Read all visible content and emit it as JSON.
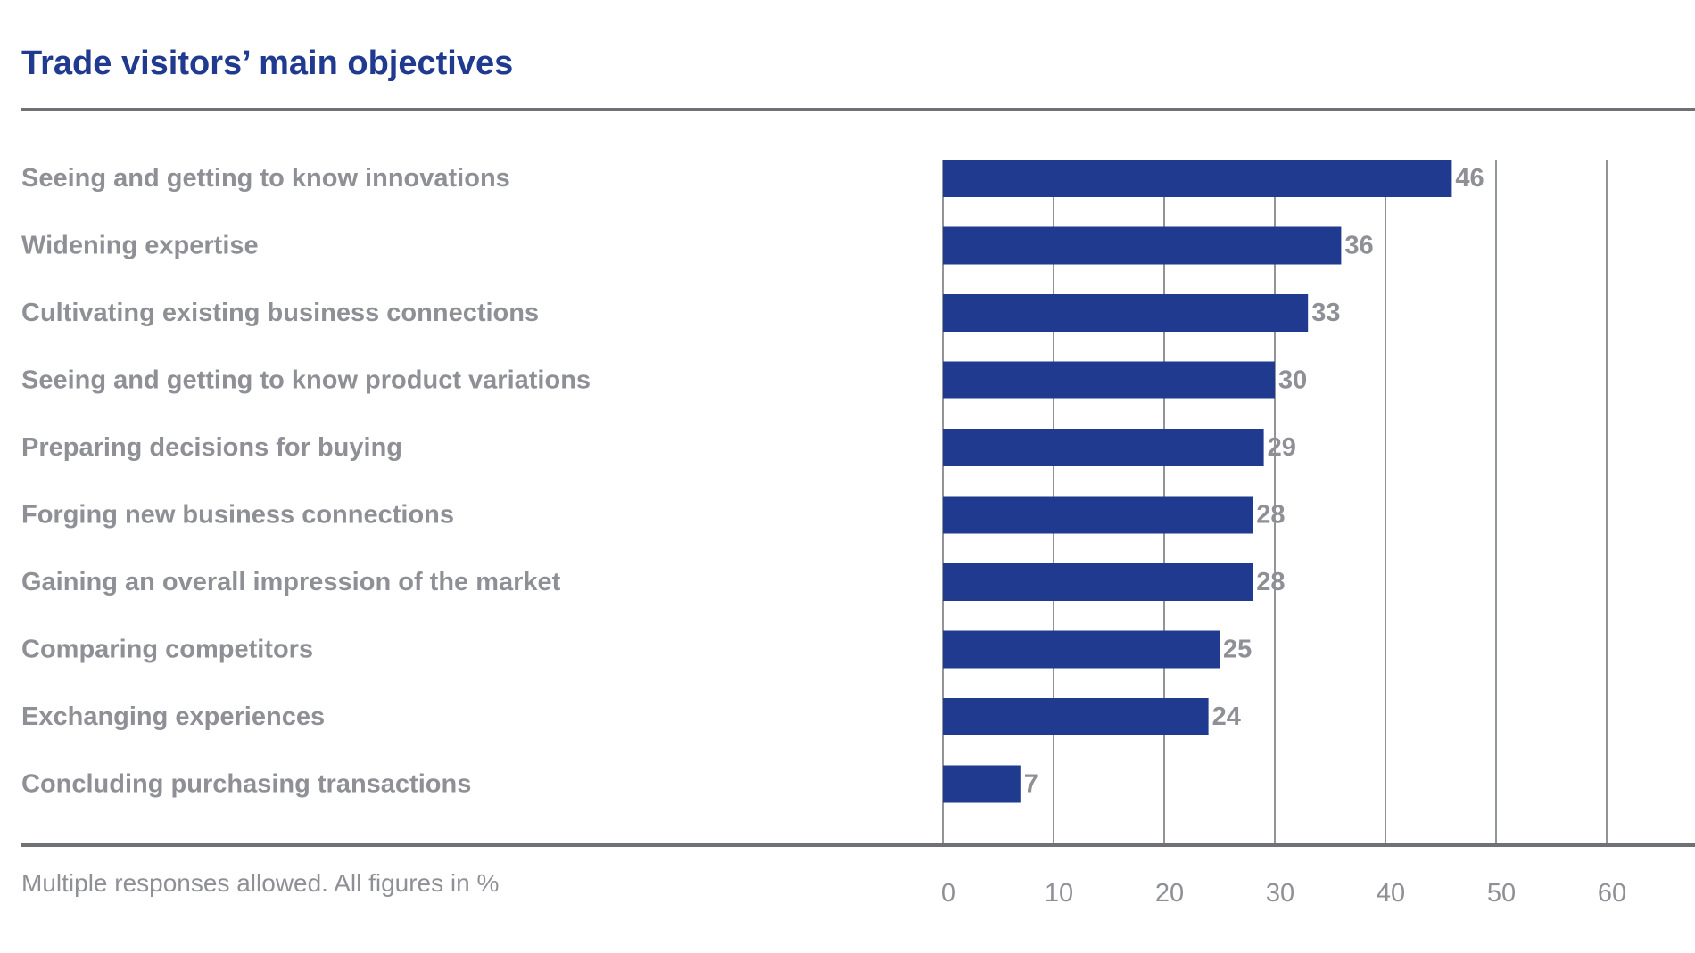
{
  "chart_data": {
    "type": "bar",
    "orientation": "horizontal",
    "title": "Trade visitors’ main objectives",
    "footnote": "Multiple responses allowed. All figures in %",
    "categories": [
      "Seeing and getting to know innovations",
      "Widening expertise",
      "Cultivating existing business connections",
      "Seeing and getting to know product variations",
      "Preparing decisions for buying",
      "Forging new business connections",
      "Gaining an overall impression of the market",
      "Comparing competitors",
      "Exchanging experiences",
      "Concluding purchasing transactions"
    ],
    "values": [
      46,
      36,
      33,
      30,
      29,
      28,
      28,
      25,
      24,
      7
    ],
    "xlim": [
      0,
      60
    ],
    "xticks": [
      0,
      10,
      20,
      30,
      40,
      50,
      60
    ],
    "grid": "vertical",
    "bar_color": "#1f3a8f",
    "grid_color": "#6f7175",
    "text_color": "#8e9095",
    "title_color": "#1f3a8f"
  }
}
